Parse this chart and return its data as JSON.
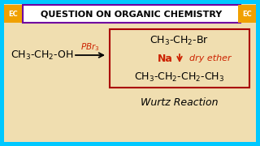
{
  "bg_color": "#f0deb0",
  "outer_border_color": "#00c8ff",
  "header_bg": "#ffffff",
  "header_text": "QUESTION ON ORGANIC CHEMISTRY",
  "header_text_color": "#000000",
  "header_border_color": "#7000a0",
  "ec_bg_color": "#f0a000",
  "ec_text": "EC",
  "reactant": "CH$_3$-CH$_2$-OH",
  "reagent_above": "PBr$_3$",
  "product1": "CH$_3$-CH$_2$-Br",
  "reagent_left": "Na",
  "reagent_right": "dry ether",
  "product2": "CH$_3$-CH$_2$-CH$_2$-CH$_3$",
  "wurtz": "Wurtz Reaction",
  "black": "#000000",
  "red": "#cc2200",
  "box_color": "#aa0000",
  "arrow_color": "#cc2200"
}
